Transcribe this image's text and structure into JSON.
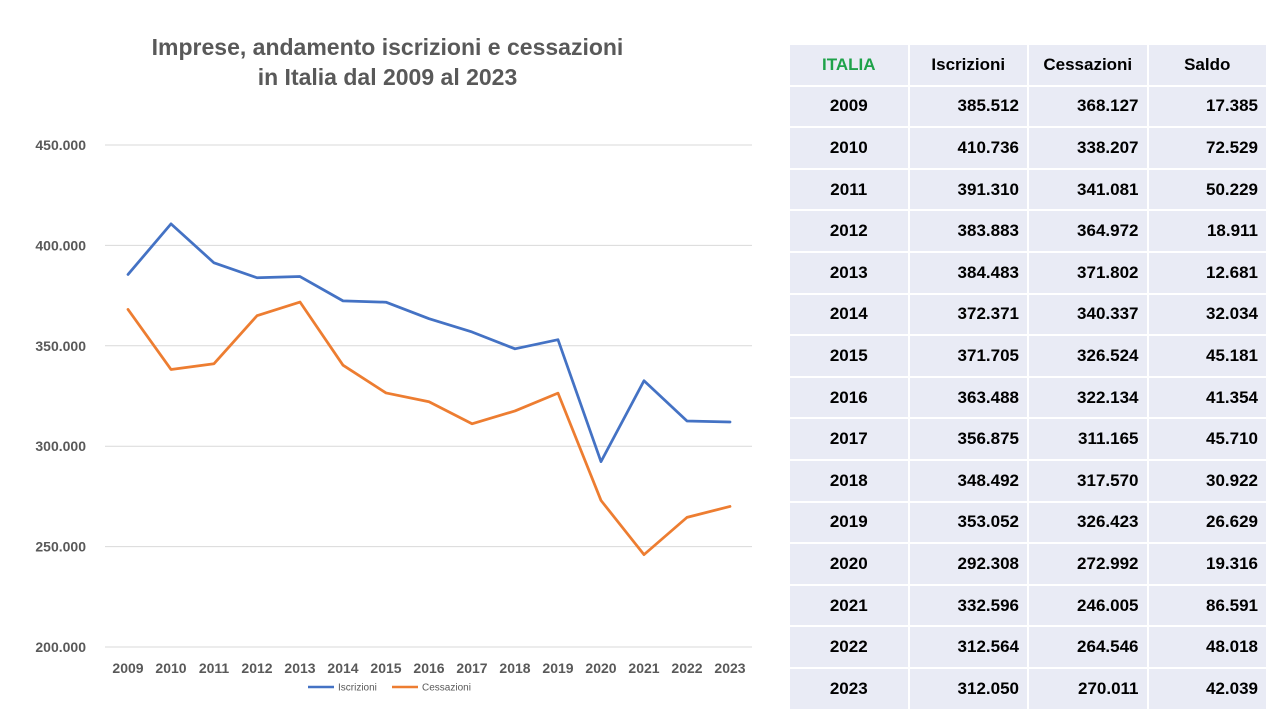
{
  "chart_data": {
    "type": "line",
    "title_line1": "Imprese, andamento iscrizioni e cessazioni",
    "title_line2": "in Italia dal 2009 al 2023",
    "categories": [
      "2009",
      "2010",
      "2011",
      "2012",
      "2013",
      "2014",
      "2015",
      "2016",
      "2017",
      "2018",
      "2019",
      "2020",
      "2021",
      "2022",
      "2023"
    ],
    "series": [
      {
        "name": "Iscrizioni",
        "color": "#4472c4",
        "values": [
          385512,
          410736,
          391310,
          383883,
          384483,
          372371,
          371705,
          363488,
          356875,
          348492,
          353052,
          292308,
          332596,
          312564,
          312050
        ]
      },
      {
        "name": "Cessazioni",
        "color": "#ed7d31",
        "values": [
          368127,
          338207,
          341081,
          364972,
          371802,
          340337,
          326524,
          322134,
          311165,
          317570,
          326423,
          272992,
          246005,
          264546,
          270011
        ]
      }
    ],
    "ylim": [
      200000,
      450000
    ],
    "yticks": [
      200000,
      250000,
      300000,
      350000,
      400000,
      450000
    ],
    "ytick_labels": [
      "200.000",
      "250.000",
      "300.000",
      "350.000",
      "400.000",
      "450.000"
    ],
    "grid": true,
    "legend_position": "bottom"
  },
  "table": {
    "headers": [
      "ITALIA",
      "Iscrizioni",
      "Cessazioni",
      "Saldo"
    ],
    "rows": [
      [
        "2009",
        "385.512",
        "368.127",
        "17.385"
      ],
      [
        "2010",
        "410.736",
        "338.207",
        "72.529"
      ],
      [
        "2011",
        "391.310",
        "341.081",
        "50.229"
      ],
      [
        "2012",
        "383.883",
        "364.972",
        "18.911"
      ],
      [
        "2013",
        "384.483",
        "371.802",
        "12.681"
      ],
      [
        "2014",
        "372.371",
        "340.337",
        "32.034"
      ],
      [
        "2015",
        "371.705",
        "326.524",
        "45.181"
      ],
      [
        "2016",
        "363.488",
        "322.134",
        "41.354"
      ],
      [
        "2017",
        "356.875",
        "311.165",
        "45.710"
      ],
      [
        "2018",
        "348.492",
        "317.570",
        "30.922"
      ],
      [
        "2019",
        "353.052",
        "326.423",
        "26.629"
      ],
      [
        "2020",
        "292.308",
        "272.992",
        "19.316"
      ],
      [
        "2021",
        "332.596",
        "246.005",
        "86.591"
      ],
      [
        "2022",
        "312.564",
        "264.546",
        "48.018"
      ],
      [
        "2023",
        "312.050",
        "270.011",
        "42.039"
      ]
    ]
  }
}
